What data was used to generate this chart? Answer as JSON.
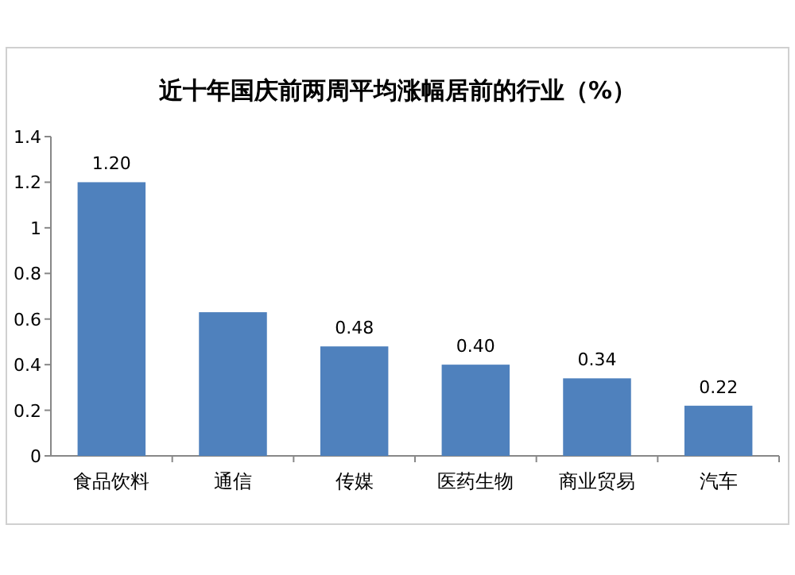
{
  "chart_data": {
    "type": "bar",
    "title": "近十年国庆前两周平均涨幅居前的行业（%）",
    "categories": [
      "食品饮料",
      "通信",
      "传媒",
      "医药生物",
      "商业贸易",
      "汽车"
    ],
    "values": [
      1.2,
      0.63,
      0.48,
      0.4,
      0.34,
      0.22
    ],
    "value_labels": [
      "1.20",
      null,
      "0.48",
      "0.40",
      "0.34",
      "0.22"
    ],
    "color": "#4f81bd",
    "ylim": [
      0,
      1.4
    ],
    "yticks": [
      0,
      0.2,
      0.4,
      0.6,
      0.8,
      1,
      1.2,
      1.4
    ],
    "grid": false
  }
}
